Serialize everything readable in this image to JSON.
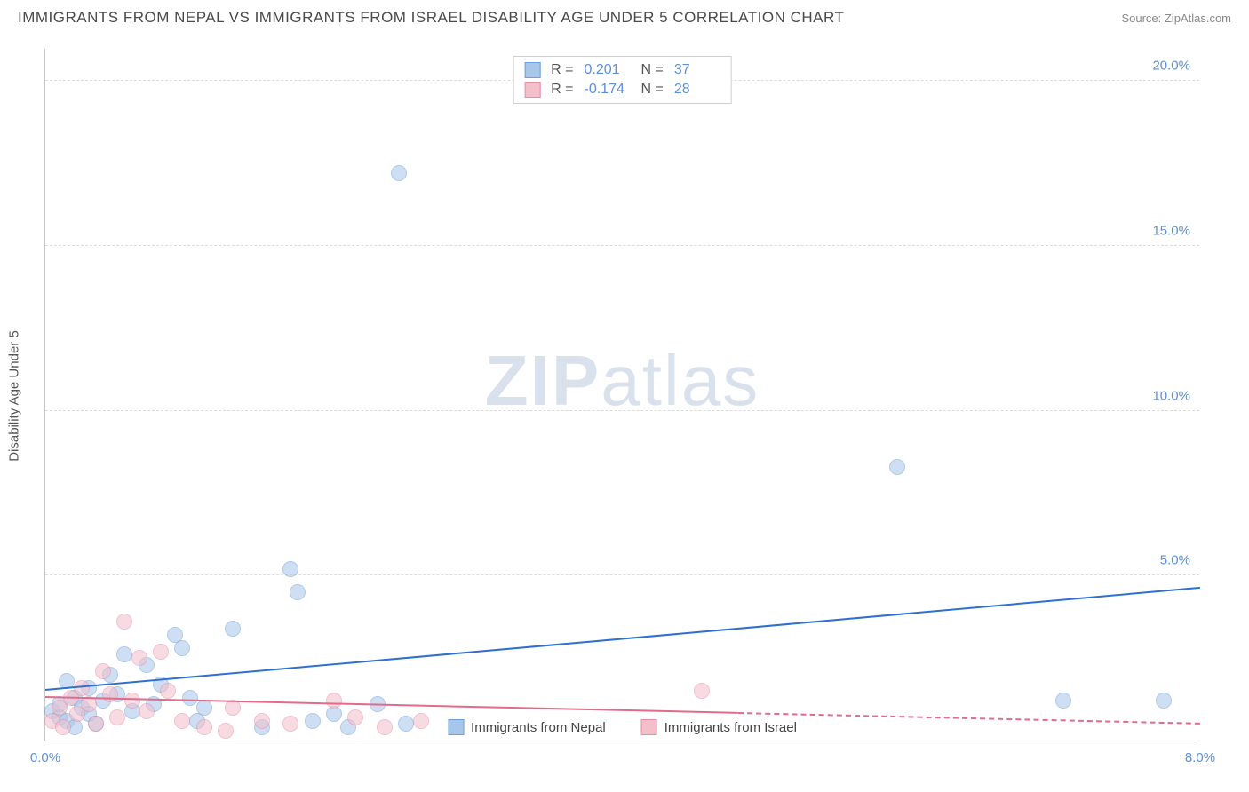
{
  "title": "IMMIGRANTS FROM NEPAL VS IMMIGRANTS FROM ISRAEL DISABILITY AGE UNDER 5 CORRELATION CHART",
  "source_label": "Source: ZipAtlas.com",
  "ylabel": "Disability Age Under 5",
  "watermark": {
    "bold": "ZIP",
    "light": "atlas"
  },
  "chart": {
    "type": "scatter",
    "background_color": "#ffffff",
    "grid_color": "#dcdcdc",
    "axis_color": "#c8c8c8",
    "tick_color": "#5b8fd6",
    "label_color": "#555555",
    "xlim": [
      0,
      8
    ],
    "ylim": [
      0,
      21
    ],
    "xtick_left": "0.0%",
    "xtick_right": "8.0%",
    "yticks": [
      {
        "v": 5,
        "label": "5.0%"
      },
      {
        "v": 10,
        "label": "10.0%"
      },
      {
        "v": 15,
        "label": "15.0%"
      },
      {
        "v": 20,
        "label": "20.0%"
      }
    ],
    "point_radius": 9,
    "point_opacity": 0.55,
    "series": [
      {
        "name": "Immigrants from Nepal",
        "color_fill": "#a8c6ea",
        "color_stroke": "#6f9fd8",
        "R": "0.201",
        "N": "37",
        "trend": {
          "x1": 0,
          "y1": 1.5,
          "x2": 8,
          "y2": 4.6,
          "color": "#2f6fd0",
          "width": 2,
          "solid_until_x": 8
        },
        "points": [
          [
            0.05,
            0.9
          ],
          [
            0.1,
            0.7
          ],
          [
            0.1,
            1.1
          ],
          [
            0.15,
            0.6
          ],
          [
            0.2,
            1.3
          ],
          [
            0.2,
            0.4
          ],
          [
            0.25,
            1.0
          ],
          [
            0.3,
            0.8
          ],
          [
            0.3,
            1.6
          ],
          [
            0.35,
            0.5
          ],
          [
            0.4,
            1.2
          ],
          [
            0.45,
            2.0
          ],
          [
            0.5,
            1.4
          ],
          [
            0.55,
            2.6
          ],
          [
            0.6,
            0.9
          ],
          [
            0.7,
            2.3
          ],
          [
            0.75,
            1.1
          ],
          [
            0.8,
            1.7
          ],
          [
            0.9,
            3.2
          ],
          [
            0.95,
            2.8
          ],
          [
            1.0,
            1.3
          ],
          [
            1.05,
            0.6
          ],
          [
            1.1,
            1.0
          ],
          [
            1.3,
            3.4
          ],
          [
            1.5,
            0.4
          ],
          [
            1.7,
            5.2
          ],
          [
            1.75,
            4.5
          ],
          [
            1.85,
            0.6
          ],
          [
            2.0,
            0.8
          ],
          [
            2.1,
            0.4
          ],
          [
            2.3,
            1.1
          ],
          [
            2.45,
            17.2
          ],
          [
            2.5,
            0.5
          ],
          [
            5.9,
            8.3
          ],
          [
            7.05,
            1.2
          ],
          [
            7.75,
            1.2
          ],
          [
            0.15,
            1.8
          ]
        ]
      },
      {
        "name": "Immigrants from Israel",
        "color_fill": "#f3bfcb",
        "color_stroke": "#e58fa5",
        "R": "-0.174",
        "N": "28",
        "trend": {
          "x1": 0,
          "y1": 1.3,
          "x2": 8,
          "y2": 0.5,
          "color": "#e06b8b",
          "width": 2,
          "solid_until_x": 4.8
        },
        "points": [
          [
            0.05,
            0.6
          ],
          [
            0.1,
            1.0
          ],
          [
            0.12,
            0.4
          ],
          [
            0.18,
            1.3
          ],
          [
            0.22,
            0.8
          ],
          [
            0.25,
            1.6
          ],
          [
            0.3,
            1.1
          ],
          [
            0.35,
            0.5
          ],
          [
            0.4,
            2.1
          ],
          [
            0.45,
            1.4
          ],
          [
            0.5,
            0.7
          ],
          [
            0.55,
            3.6
          ],
          [
            0.6,
            1.2
          ],
          [
            0.65,
            2.5
          ],
          [
            0.7,
            0.9
          ],
          [
            0.8,
            2.7
          ],
          [
            0.85,
            1.5
          ],
          [
            0.95,
            0.6
          ],
          [
            1.1,
            0.4
          ],
          [
            1.25,
            0.3
          ],
          [
            1.3,
            1.0
          ],
          [
            1.5,
            0.6
          ],
          [
            1.7,
            0.5
          ],
          [
            2.0,
            1.2
          ],
          [
            2.15,
            0.7
          ],
          [
            2.35,
            0.4
          ],
          [
            2.6,
            0.6
          ],
          [
            4.55,
            1.5
          ]
        ]
      }
    ]
  },
  "legend_top": {
    "border_color": "#cfcfcf",
    "text_label_color": "#555555",
    "text_value_color": "#5b8fd6",
    "R_label": "R  =",
    "N_label": "N  ="
  },
  "legend_bottom_series": [
    "Immigrants from Nepal",
    "Immigrants from Israel"
  ]
}
